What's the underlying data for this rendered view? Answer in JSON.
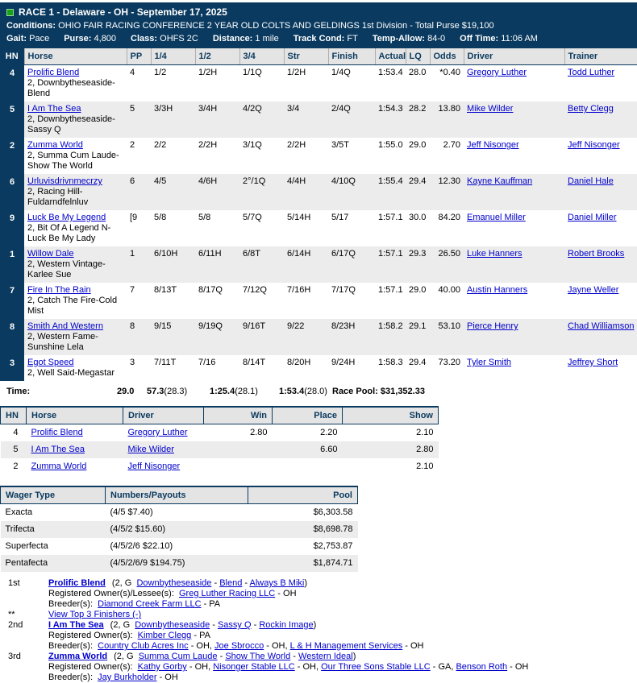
{
  "colors": {
    "header_navy": "#0a3a5f",
    "status_green": "#17a317",
    "link_blue": "#0000cc",
    "row_alt_gray": "#ececec",
    "table_head_gray": "#e4e4e4"
  },
  "header": {
    "race_title": "RACE 1 - Delaware - OH - September 17, 2025",
    "conditions_label": "Conditions:",
    "conditions": "OHIO FAIR RACING CONFERENCE 2 YEAR OLD COLTS AND GELDINGS 1st Division - Total Purse $19,100",
    "stats": [
      {
        "label": "Gait:",
        "value": "Pace"
      },
      {
        "label": "Purse:",
        "value": "4,800"
      },
      {
        "label": "Class:",
        "value": "OHFS 2C"
      },
      {
        "label": "Distance:",
        "value": "1 mile"
      },
      {
        "label": "Track Cond:",
        "value": "FT"
      },
      {
        "label": "Temp-Allow:",
        "value": "84-0"
      },
      {
        "label": "Off Time:",
        "value": "11:06 AM"
      }
    ]
  },
  "results_table": {
    "columns": [
      "HN",
      "Horse",
      "PP",
      "1/4",
      "1/2",
      "3/4",
      "Str",
      "Finish",
      "Actual",
      "LQ",
      "Odds",
      "Driver",
      "Trainer"
    ],
    "rows": [
      {
        "hn": "4",
        "horse": "Prolific Blend",
        "pedigree": "2, Downbytheseaside-Blend",
        "pp": "4",
        "q1": "1/2",
        "q2": "1/2H",
        "q3": "1/1Q",
        "str": "1/2H",
        "finish": "1/4Q",
        "actual": "1:53.4",
        "lq": "28.0",
        "odds": "*0.40",
        "driver": "Gregory Luther",
        "trainer": "Todd Luther"
      },
      {
        "hn": "5",
        "horse": "I Am The Sea",
        "pedigree": "2, Downbytheseaside-Sassy Q",
        "pp": "5",
        "q1": "3/3H",
        "q2": "3/4H",
        "q3": "4/2Q",
        "str": "3/4",
        "finish": "2/4Q",
        "actual": "1:54.3",
        "lq": "28.2",
        "odds": "13.80",
        "driver": "Mike Wilder",
        "trainer": "Betty Clegg"
      },
      {
        "hn": "2",
        "horse": "Zumma World",
        "pedigree": "2, Summa Cum Laude-Show The World",
        "pp": "2",
        "q1": "2/2",
        "q2": "2/2H",
        "q3": "3/1Q",
        "str": "2/2H",
        "finish": "3/5T",
        "actual": "1:55.0",
        "lq": "29.0",
        "odds": "2.70",
        "driver": "Jeff Nisonger",
        "trainer": "Jeff Nisonger"
      },
      {
        "hn": "6",
        "horse": "Urluvisdrivnmecrzy",
        "pedigree": "2, Racing Hill-Fuldarndfelnluv",
        "pp": "6",
        "q1": "4/5",
        "q2": "4/6H",
        "q3": "2°/1Q",
        "str": "4/4H",
        "finish": "4/10Q",
        "actual": "1:55.4",
        "lq": "29.4",
        "odds": "12.30",
        "driver": "Kayne Kauffman",
        "trainer": "Daniel Hale"
      },
      {
        "hn": "9",
        "horse": "Luck Be My Legend",
        "pedigree": "2, Bit Of A Legend N-Luck Be My Lady",
        "pp": "[9",
        "q1": "5/8",
        "q2": "5/8",
        "q3": "5/7Q",
        "str": "5/14H",
        "finish": "5/17",
        "actual": "1:57.1",
        "lq": "30.0",
        "odds": "84.20",
        "driver": "Emanuel Miller",
        "trainer": "Daniel Miller"
      },
      {
        "hn": "1",
        "horse": "Willow Dale",
        "pedigree": "2, Western Vintage-Karlee Sue",
        "pp": "1",
        "q1": "6/10H",
        "q2": "6/11H",
        "q3": "6/8T",
        "str": "6/14H",
        "finish": "6/17Q",
        "actual": "1:57.1",
        "lq": "29.3",
        "odds": "26.50",
        "driver": "Luke Hanners",
        "trainer": "Robert Brooks"
      },
      {
        "hn": "7",
        "horse": "Fire In The Rain",
        "pedigree": "2, Catch The Fire-Cold Mist",
        "pp": "7",
        "q1": "8/13T",
        "q2": "8/17Q",
        "q3": "7/12Q",
        "str": "7/16H",
        "finish": "7/17Q",
        "actual": "1:57.1",
        "lq": "29.0",
        "odds": "40.00",
        "driver": "Austin Hanners",
        "trainer": "Jayne Weller"
      },
      {
        "hn": "8",
        "horse": "Smith And Western",
        "pedigree": "2, Western Fame-Sunshine Lela",
        "pp": "8",
        "q1": "9/15",
        "q2": "9/19Q",
        "q3": "9/16T",
        "str": "9/22",
        "finish": "8/23H",
        "actual": "1:58.2",
        "lq": "29.1",
        "odds": "53.10",
        "driver": "Pierce Henry",
        "trainer": "Chad Williamson"
      },
      {
        "hn": "3",
        "horse": "Egot Speed",
        "pedigree": "2, Well Said-Megastar",
        "pp": "3",
        "q1": "7/11T",
        "q2": "7/16",
        "q3": "8/14T",
        "str": "8/20H",
        "finish": "9/24H",
        "actual": "1:58.3",
        "lq": "29.4",
        "odds": "73.20",
        "driver": "Tyler Smith",
        "trainer": "Jeffrey Short"
      }
    ]
  },
  "time_row": {
    "label": "Time:",
    "times": [
      {
        "main": "29.0",
        "split": ""
      },
      {
        "main": "57.3",
        "split": "(28.3)"
      },
      {
        "main": "1:25.4",
        "split": "(28.1)"
      },
      {
        "main": "1:53.4",
        "split": "(28.0)"
      }
    ],
    "race_pool": "Race Pool: $31,352.33"
  },
  "payout_table": {
    "columns": [
      "HN",
      "Horse",
      "Driver",
      "Win",
      "Place",
      "Show"
    ],
    "rows": [
      {
        "hn": "4",
        "horse": "Prolific Blend",
        "driver": "Gregory Luther",
        "win": "2.80",
        "place": "2.20",
        "show": "2.10"
      },
      {
        "hn": "5",
        "horse": "I Am The Sea",
        "driver": "Mike Wilder",
        "win": "",
        "place": "6.60",
        "show": "2.80"
      },
      {
        "hn": "2",
        "horse": "Zumma World",
        "driver": "Jeff Nisonger",
        "win": "",
        "place": "",
        "show": "2.10"
      }
    ]
  },
  "wager_table": {
    "columns": [
      "Wager Type",
      "Numbers/Payouts",
      "Pool"
    ],
    "rows": [
      {
        "type": "Exacta",
        "numbers": "(4/5 $7.40)",
        "pool": "$6,303.58"
      },
      {
        "type": "Trifecta",
        "numbers": "(4/5/2 $15.60)",
        "pool": "$8,698.78"
      },
      {
        "type": "Superfecta",
        "numbers": "(4/5/2/6 $22.10)",
        "pool": "$2,753.87"
      },
      {
        "type": "Pentafecta",
        "numbers": "(4/5/2/6/9 $194.75)",
        "pool": "$1,874.71"
      }
    ]
  },
  "view_finishers": {
    "marker": "**",
    "label": "View Top 3 Finishers (-)"
  },
  "finishers": [
    {
      "place": "1st",
      "name": "Prolific Blend",
      "detail_prefix": "(2, G",
      "pedigree_links": [
        "Downbytheseaside",
        "Blend",
        "Always B Miki"
      ],
      "owner_label": "Registered Owner(s)/Lessee(s):",
      "owners": [
        {
          "name": "Greg Luther Racing LLC",
          "loc": " - OH"
        }
      ],
      "breeder_label": "Breeder(s):",
      "breeders": [
        {
          "name": "Diamond Creek Farm LLC",
          "loc": " - PA"
        }
      ]
    },
    {
      "place": "2nd",
      "name": "I Am The Sea",
      "detail_prefix": "(2, G",
      "pedigree_links": [
        "Downbytheseaside",
        "Sassy Q",
        "Rockin Image"
      ],
      "owner_label": "Registered Owner(s):",
      "owners": [
        {
          "name": "Kimber Clegg",
          "loc": " - PA"
        }
      ],
      "breeder_label": "Breeder(s):",
      "breeders": [
        {
          "name": "Country Club Acres Inc",
          "loc": " - OH,"
        },
        {
          "name": "Joe Sbrocco",
          "loc": " - OH,"
        },
        {
          "name": "L & H Management Services",
          "loc": " - OH"
        }
      ]
    },
    {
      "place": "3rd",
      "name": "Zumma World",
      "detail_prefix": "(2, G",
      "pedigree_links": [
        "Summa Cum Laude",
        "Show The World",
        "Western Ideal"
      ],
      "owner_label": "Registered Owner(s):",
      "owners": [
        {
          "name": "Kathy Gorby",
          "loc": " - OH,"
        },
        {
          "name": "Nisonger Stable LLC",
          "loc": " - OH,"
        },
        {
          "name": "Our Three Sons Stable LLC",
          "loc": " - GA,"
        },
        {
          "name": "Benson Roth",
          "loc": " - OH"
        }
      ],
      "breeder_label": "Breeder(s):",
      "breeders": [
        {
          "name": "Jay Burkholder",
          "loc": " - OH"
        }
      ]
    }
  ]
}
